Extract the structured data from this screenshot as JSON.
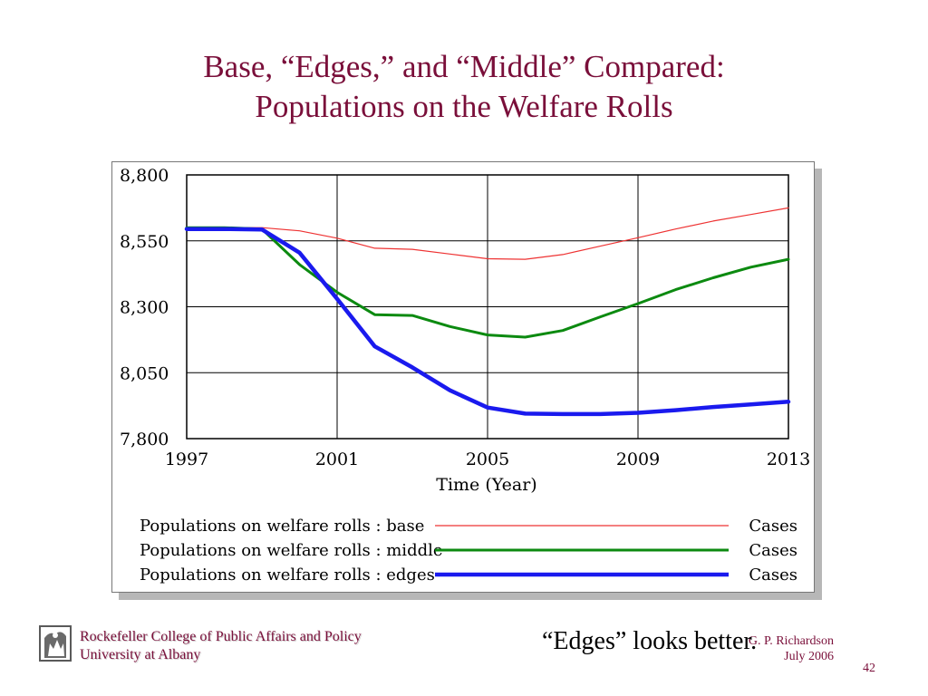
{
  "slide": {
    "title_line1": "Base, “Edges,” and “Middle” Compared:",
    "title_line2": "Populations on the Welfare Rolls",
    "caption": "“Edges” looks better.",
    "slide_number": "42",
    "footer": {
      "org_line1": "Rockefeller College of Public Affairs and Policy",
      "org_line2": "University at Albany",
      "author": "G. P. Richardson",
      "date": "July 2006"
    },
    "colors": {
      "title": "#7a0f3a",
      "base": "#ee3333",
      "middle": "#0c8a10",
      "edges": "#1a1aee"
    }
  },
  "chart_data": {
    "type": "line",
    "xlabel": "Time (Year)",
    "ylabel": "",
    "xlim": [
      1997,
      2013
    ],
    "ylim": [
      7800,
      8800
    ],
    "x_ticks": [
      "1997",
      "2001",
      "2005",
      "2009",
      "2013"
    ],
    "y_ticks": [
      "8,800",
      "8,550",
      "8,300",
      "8,050",
      "7,800"
    ],
    "x_tick_values": [
      1997,
      2001,
      2005,
      2009,
      2013
    ],
    "y_tick_values": [
      8800,
      8550,
      8300,
      8050,
      7800
    ],
    "grid": true,
    "legend_position": "bottom",
    "x": [
      1997,
      1998,
      1999,
      2000,
      2001,
      2002,
      2003,
      2004,
      2005,
      2006,
      2007,
      2008,
      2009,
      2010,
      2011,
      2012,
      2013
    ],
    "series": [
      {
        "name": "Populations on welfare rolls : base",
        "unit": "Cases",
        "color": "#ee3333",
        "values": [
          8600,
          8600,
          8600,
          8588,
          8560,
          8522,
          8518,
          8500,
          8482,
          8480,
          8498,
          8530,
          8562,
          8595,
          8625,
          8650,
          8675
        ]
      },
      {
        "name": "Populations on welfare rolls : middle",
        "unit": "Cases",
        "color": "#0c8a10",
        "values": [
          8600,
          8600,
          8595,
          8460,
          8355,
          8270,
          8267,
          8225,
          8193,
          8185,
          8210,
          8262,
          8312,
          8365,
          8410,
          8450,
          8480
        ]
      },
      {
        "name": "Populations on welfare rolls : edges",
        "unit": "Cases",
        "color": "#1a1aee",
        "values": [
          8595,
          8595,
          8593,
          8505,
          8330,
          8150,
          8070,
          7983,
          7918,
          7895,
          7893,
          7893,
          7898,
          7908,
          7920,
          7930,
          7940
        ]
      }
    ]
  }
}
